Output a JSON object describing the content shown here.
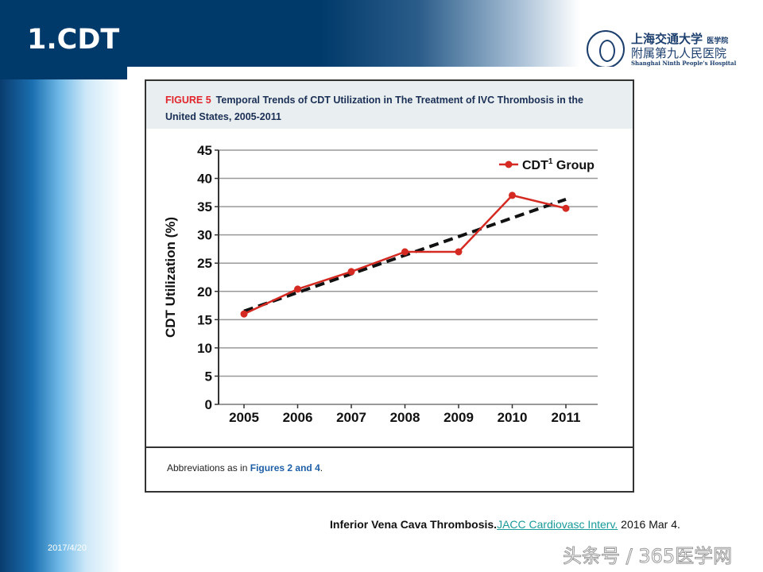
{
  "slide": {
    "title": "1.CDT",
    "date": "2017/4/20",
    "watermark": "头条号 / 365医学网",
    "logo": {
      "line1": "上海交通大学",
      "line1_small": "医学院",
      "line2": "附属第九人民医院",
      "line3": "Shanghai Ninth People's Hospital"
    },
    "citation": {
      "title": "Inferior Vena Cava Thrombosis.",
      "journal": "JACC Cardiovasc Interv.",
      "date": " 2016 Mar 4."
    }
  },
  "figure": {
    "label": "FIGURE 5",
    "caption": "Temporal Trends of CDT Utilization in The Treatment of IVC Thrombosis in the United States, 2005-2011",
    "footnote_prefix": "Abbreviations as in ",
    "footnote_link": "Figures 2 and 4",
    "footnote_suffix": "."
  },
  "chart_data": {
    "type": "line",
    "title": "",
    "xlabel": "",
    "ylabel": "CDT Utilization (%)",
    "categories": [
      "2005",
      "2006",
      "2007",
      "2008",
      "2009",
      "2010",
      "2011"
    ],
    "ylim": [
      0,
      45
    ],
    "yticks": [
      "0",
      "5",
      "10",
      "15",
      "20",
      "25",
      "30",
      "35",
      "40",
      "45"
    ],
    "grid": true,
    "legend_placement": "top-right",
    "series": [
      {
        "name": "CDT",
        "name_superscript": "1",
        "name_suffix": " Group",
        "values": [
          16,
          20.4,
          23.5,
          27,
          27,
          37,
          34.7
        ],
        "color": "#d42a22",
        "style": "solid-markers"
      },
      {
        "values": [
          16.5,
          19.8,
          23.1,
          26.4,
          29.7,
          33.0,
          36.3
        ],
        "color": "#111111",
        "style": "dashed-trend"
      }
    ]
  }
}
